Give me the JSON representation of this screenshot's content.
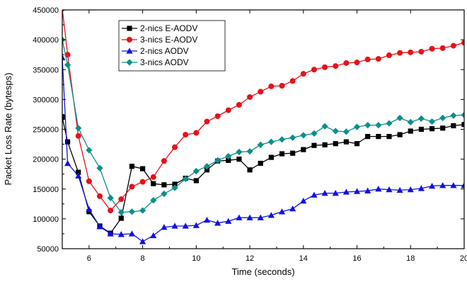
{
  "chart_data": {
    "type": "line",
    "title": "",
    "xlabel": "Time (seconds)",
    "ylabel": "Packet Loss Rate (bytesps)",
    "xlim": [
      5,
      20
    ],
    "ylim": [
      50000,
      450000
    ],
    "x_ticks": [
      6,
      8,
      10,
      12,
      14,
      16,
      18,
      20
    ],
    "y_ticks": [
      50000,
      100000,
      150000,
      200000,
      250000,
      300000,
      350000,
      400000,
      450000
    ],
    "x_tick_labels": [
      "6",
      "8",
      "10",
      "12",
      "14",
      "16",
      "18",
      "20"
    ],
    "y_tick_labels": [
      "50000",
      "100000",
      "150000",
      "200000",
      "250000",
      "300000",
      "350000",
      "400000",
      "450000"
    ],
    "grid": false,
    "legend_position": "top-left",
    "series": [
      {
        "name": "2-nics E-AODV",
        "color": "#000000",
        "marker": "square",
        "x": [
          5,
          5.2,
          5.6,
          6,
          6.4,
          6.8,
          7.2,
          7.6,
          8,
          8.4,
          8.8,
          9.2,
          9.6,
          10,
          10.4,
          10.8,
          11.2,
          11.6,
          12,
          12.4,
          12.8,
          13.2,
          13.6,
          14,
          14.4,
          14.8,
          15.2,
          15.6,
          16,
          16.4,
          16.8,
          17.2,
          17.6,
          18,
          18.4,
          18.8,
          19.2,
          19.6,
          20
        ],
        "y": [
          270000,
          229000,
          178000,
          112000,
          88000,
          76000,
          101000,
          188000,
          184000,
          159000,
          157000,
          158000,
          168000,
          164000,
          182000,
          197000,
          198000,
          200000,
          182000,
          193000,
          203000,
          209000,
          210000,
          216000,
          223000,
          224000,
          226000,
          229000,
          226000,
          238000,
          238000,
          238000,
          241000,
          247000,
          250000,
          251000,
          252000,
          256000,
          258000
        ]
      },
      {
        "name": "3-nics E-AODV",
        "color": "#e8101a",
        "marker": "circle",
        "x": [
          5,
          5.2,
          5.6,
          6,
          6.4,
          6.8,
          7.2,
          7.6,
          8,
          8.4,
          8.8,
          9.2,
          9.6,
          10,
          10.4,
          10.8,
          11.2,
          11.6,
          12,
          12.4,
          12.8,
          13.2,
          13.6,
          14,
          14.4,
          14.8,
          15.2,
          15.6,
          16,
          16.4,
          16.8,
          17.2,
          17.6,
          18,
          18.4,
          18.8,
          19.2,
          19.6,
          20
        ],
        "y": [
          452000,
          375000,
          239000,
          163000,
          138000,
          114000,
          133000,
          154000,
          162000,
          170000,
          197000,
          220000,
          241000,
          244000,
          263000,
          272000,
          282000,
          291000,
          304000,
          313000,
          322000,
          323000,
          331000,
          343000,
          350000,
          354000,
          356000,
          361000,
          362000,
          367000,
          368000,
          374000,
          378000,
          379000,
          380000,
          385000,
          386000,
          390000,
          395000
        ]
      },
      {
        "name": "2-nics AODV",
        "color": "#1010e8",
        "marker": "triangle",
        "x": [
          5,
          5.2,
          5.6,
          6,
          6.4,
          6.8,
          7.2,
          7.6,
          8,
          8.4,
          8.8,
          9.2,
          9.6,
          10,
          10.4,
          10.8,
          11.2,
          11.6,
          12,
          12.4,
          12.8,
          13.2,
          13.6,
          14,
          14.4,
          14.8,
          15.2,
          15.6,
          16,
          16.4,
          16.8,
          17.2,
          17.6,
          18,
          18.4,
          18.8,
          19.2,
          19.6,
          20
        ],
        "y": [
          370000,
          193000,
          172000,
          116000,
          87000,
          75000,
          74000,
          75000,
          62000,
          72000,
          86000,
          88000,
          88000,
          89000,
          98000,
          93000,
          96000,
          102000,
          102000,
          102000,
          106000,
          112000,
          117000,
          130000,
          140000,
          143000,
          143000,
          145000,
          146000,
          147000,
          150000,
          149000,
          148000,
          149000,
          151000,
          155000,
          156000,
          156000,
          156000
        ]
      },
      {
        "name": "3-nics AODV",
        "color": "#0a8f8a",
        "marker": "diamond",
        "x": [
          5,
          5.2,
          5.6,
          6,
          6.4,
          6.8,
          7.2,
          7.6,
          8,
          8.4,
          8.8,
          9.2,
          9.6,
          10,
          10.4,
          10.8,
          11.2,
          11.6,
          12,
          12.4,
          12.8,
          13.2,
          13.6,
          14,
          14.4,
          14.8,
          15.2,
          15.6,
          16,
          16.4,
          16.8,
          17.2,
          17.6,
          18,
          18.4,
          18.8,
          19.2,
          19.6,
          20
        ],
        "y": [
          400000,
          358000,
          252000,
          215000,
          185000,
          135000,
          111000,
          112000,
          114000,
          131000,
          142000,
          152000,
          167000,
          180000,
          188000,
          198000,
          205000,
          212000,
          213000,
          224000,
          229000,
          233000,
          236000,
          240000,
          243000,
          255000,
          247000,
          246000,
          254000,
          257000,
          257000,
          260000,
          269000,
          262000,
          268000,
          263000,
          269000,
          273000,
          274000
        ]
      }
    ]
  }
}
